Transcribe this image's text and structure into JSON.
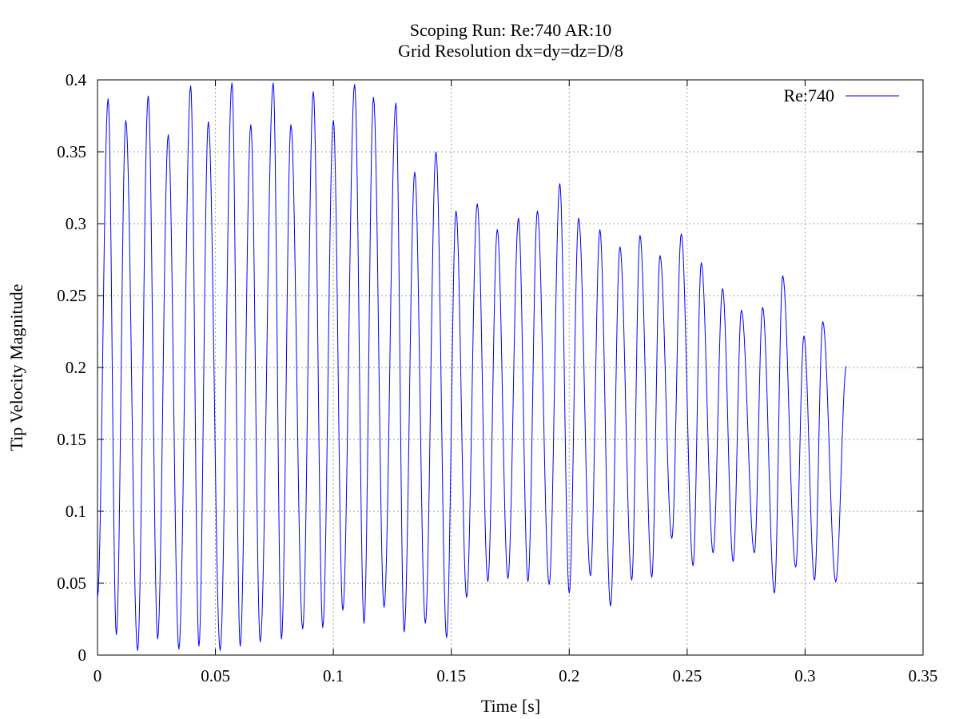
{
  "chart_data": {
    "type": "line",
    "title": "Scoping Run: Re:740  AR:10",
    "subtitle": "Grid Resolution dx=dy=dz=D/8",
    "xlabel": "Time [s]",
    "ylabel": "Tip Velocity Magnitude",
    "xlim": [
      0,
      0.35
    ],
    "ylim": [
      0,
      0.4
    ],
    "xticks": [
      "0",
      "0.05",
      "0.1",
      "0.15",
      "0.2",
      "0.25",
      "0.3",
      "0.35"
    ],
    "yticks": [
      "0",
      "0.05",
      "0.1",
      "0.15",
      "0.2",
      "0.25",
      "0.3",
      "0.35",
      "0.4"
    ],
    "grid": true,
    "legend_position": "top-right",
    "series": [
      {
        "name": "Re:740",
        "color": "#0000ff",
        "start": [
          0.0,
          0.04
        ],
        "peaks": [
          [
            0.0045,
            0.387
          ],
          [
            0.012,
            0.372
          ],
          [
            0.0215,
            0.389
          ],
          [
            0.03,
            0.362
          ],
          [
            0.0395,
            0.396
          ],
          [
            0.047,
            0.371
          ],
          [
            0.057,
            0.398
          ],
          [
            0.065,
            0.369
          ],
          [
            0.0745,
            0.398
          ],
          [
            0.082,
            0.369
          ],
          [
            0.0915,
            0.392
          ],
          [
            0.1,
            0.372
          ],
          [
            0.109,
            0.397
          ],
          [
            0.117,
            0.388
          ],
          [
            0.1265,
            0.384
          ],
          [
            0.1345,
            0.336
          ],
          [
            0.1435,
            0.35
          ],
          [
            0.152,
            0.309
          ],
          [
            0.161,
            0.314
          ],
          [
            0.1695,
            0.296
          ],
          [
            0.1785,
            0.304
          ],
          [
            0.1865,
            0.309
          ],
          [
            0.196,
            0.328
          ],
          [
            0.204,
            0.304
          ],
          [
            0.213,
            0.296
          ],
          [
            0.2215,
            0.284
          ],
          [
            0.23,
            0.292
          ],
          [
            0.2385,
            0.278
          ],
          [
            0.2475,
            0.293
          ],
          [
            0.256,
            0.273
          ],
          [
            0.265,
            0.255
          ],
          [
            0.273,
            0.24
          ],
          [
            0.282,
            0.242
          ],
          [
            0.2905,
            0.264
          ],
          [
            0.2995,
            0.222
          ],
          [
            0.3075,
            0.232
          ]
        ],
        "troughs": [
          [
            0.008,
            0.014
          ],
          [
            0.017,
            0.003
          ],
          [
            0.0255,
            0.011
          ],
          [
            0.0345,
            0.004
          ],
          [
            0.043,
            0.006
          ],
          [
            0.052,
            0.003
          ],
          [
            0.0605,
            0.006
          ],
          [
            0.069,
            0.009
          ],
          [
            0.078,
            0.011
          ],
          [
            0.087,
            0.018
          ],
          [
            0.0955,
            0.019
          ],
          [
            0.104,
            0.031
          ],
          [
            0.113,
            0.022
          ],
          [
            0.1215,
            0.033
          ],
          [
            0.13,
            0.016
          ],
          [
            0.139,
            0.022
          ],
          [
            0.148,
            0.012
          ],
          [
            0.1565,
            0.04
          ],
          [
            0.1655,
            0.051
          ],
          [
            0.174,
            0.053
          ],
          [
            0.1825,
            0.051
          ],
          [
            0.1915,
            0.049
          ],
          [
            0.2,
            0.043
          ],
          [
            0.209,
            0.055
          ],
          [
            0.2175,
            0.034
          ],
          [
            0.2265,
            0.052
          ],
          [
            0.235,
            0.054
          ],
          [
            0.2435,
            0.081
          ],
          [
            0.2525,
            0.062
          ],
          [
            0.261,
            0.071
          ],
          [
            0.2695,
            0.065
          ],
          [
            0.2785,
            0.071
          ],
          [
            0.287,
            0.043
          ],
          [
            0.296,
            0.061
          ],
          [
            0.304,
            0.052
          ],
          [
            0.313,
            0.051
          ]
        ],
        "end": [
          0.3175,
          0.201
        ]
      }
    ]
  }
}
